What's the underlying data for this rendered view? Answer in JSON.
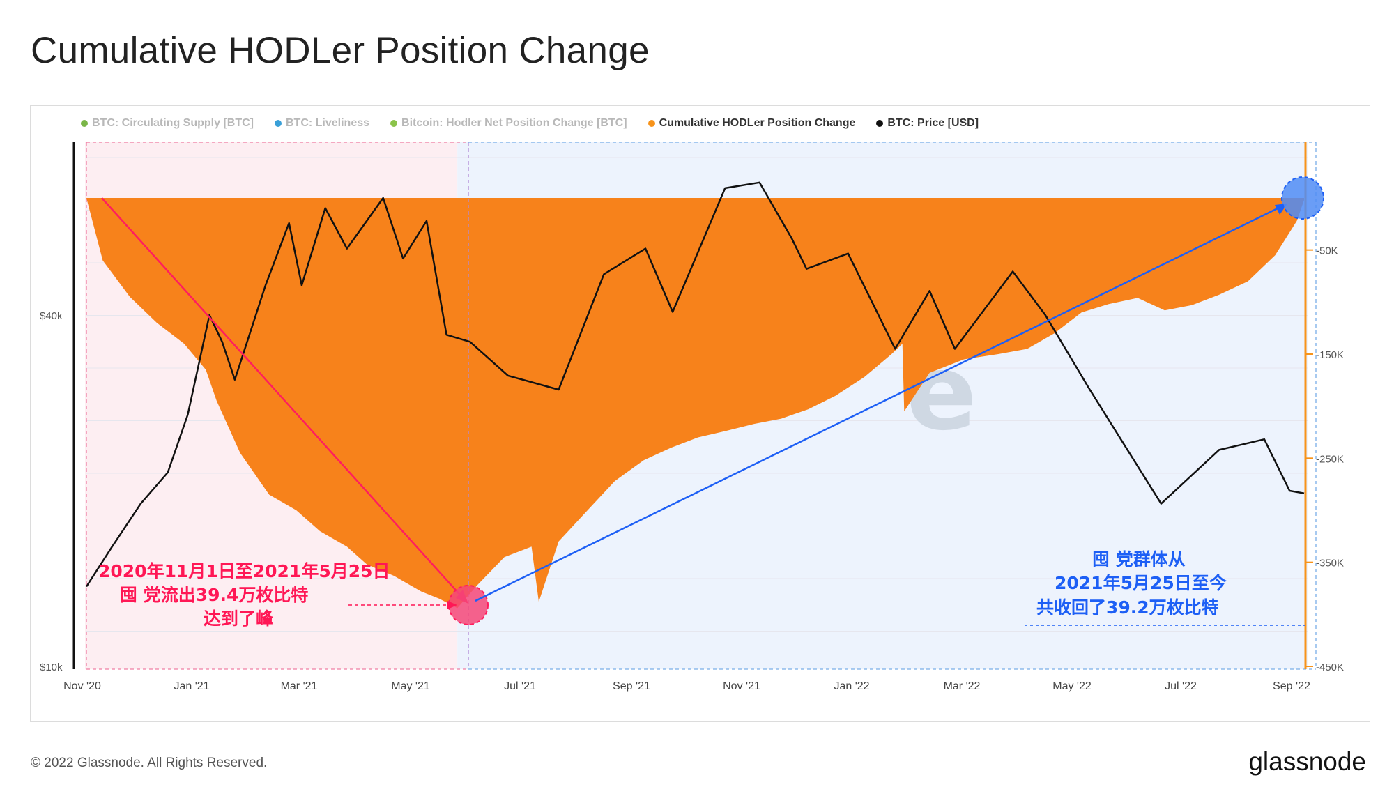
{
  "title": "Cumulative HODLer Position Change",
  "legend": [
    {
      "label": "BTC: Circulating Supply [BTC]",
      "color": "#7ab648",
      "active": false
    },
    {
      "label": "BTC: Liveliness",
      "color": "#3aa0d8",
      "active": false
    },
    {
      "label": "Bitcoin: Hodler Net Position Change [BTC]",
      "color": "#8bc34a",
      "active": false
    },
    {
      "label": "Cumulative HODLer Position Change",
      "color": "#f7931a",
      "active": true
    },
    {
      "label": "BTC: Price [USD]",
      "color": "#111111",
      "active": true
    }
  ],
  "footer": {
    "copyright": "© 2022 Glassnode. All Rights Reserved.",
    "logo": "glassnode"
  },
  "chart_data": {
    "type": "area",
    "title": "Cumulative HODLer Position Change",
    "x_tick_labels": [
      "Nov '20",
      "Jan '21",
      "Mar '21",
      "May '21",
      "Jul '21",
      "Sep '21",
      "Nov '21",
      "Jan '22",
      "Mar '22",
      "May '22",
      "Jul '22",
      "Sep '22"
    ],
    "left_axis": {
      "scale": "log",
      "tick_labels": [
        "$10k",
        "$40k"
      ],
      "tick_values": [
        10000,
        40000
      ],
      "range": [
        10000,
        70000
      ]
    },
    "right_axis": {
      "tick_labels": [
        "-50K",
        "-150K",
        "-250K",
        "-350K",
        "-450K"
      ],
      "tick_values": [
        -50000,
        -150000,
        -250000,
        -350000,
        -450000
      ],
      "range": [
        -450000,
        40000
      ]
    },
    "grid": true,
    "legend_position": "top",
    "series": [
      {
        "name": "Cumulative HODLer Position Change",
        "axis": "right",
        "color": "#f7821b",
        "points": [
          [
            "2020-11-01",
            0
          ],
          [
            "2020-11-10",
            -60000
          ],
          [
            "2020-11-25",
            -95000
          ],
          [
            "2020-12-10",
            -120000
          ],
          [
            "2020-12-25",
            -140000
          ],
          [
            "2021-01-06",
            -165000
          ],
          [
            "2021-01-12",
            -195000
          ],
          [
            "2021-01-25",
            -245000
          ],
          [
            "2021-02-10",
            -285000
          ],
          [
            "2021-02-25",
            -300000
          ],
          [
            "2021-03-10",
            -320000
          ],
          [
            "2021-03-25",
            -335000
          ],
          [
            "2021-04-05",
            -352000
          ],
          [
            "2021-04-20",
            -363000
          ],
          [
            "2021-05-05",
            -378000
          ],
          [
            "2021-05-15",
            -385000
          ],
          [
            "2021-05-25",
            -394000
          ],
          [
            "2021-06-05",
            -372000
          ],
          [
            "2021-06-20",
            -345000
          ],
          [
            "2021-07-05",
            -335000
          ],
          [
            "2021-07-09",
            -388000
          ],
          [
            "2021-07-20",
            -330000
          ],
          [
            "2021-08-05",
            -300000
          ],
          [
            "2021-08-20",
            -272000
          ],
          [
            "2021-09-05",
            -252000
          ],
          [
            "2021-09-20",
            -240000
          ],
          [
            "2021-10-05",
            -230000
          ],
          [
            "2021-10-20",
            -224000
          ],
          [
            "2021-11-05",
            -217000
          ],
          [
            "2021-11-20",
            -212000
          ],
          [
            "2021-12-05",
            -203000
          ],
          [
            "2021-12-20",
            -190000
          ],
          [
            "2022-01-05",
            -172000
          ],
          [
            "2022-01-20",
            -150000
          ],
          [
            "2022-01-26",
            -140000
          ],
          [
            "2022-01-27",
            -205000
          ],
          [
            "2022-02-10",
            -168000
          ],
          [
            "2022-03-01",
            -155000
          ],
          [
            "2022-03-20",
            -150000
          ],
          [
            "2022-04-05",
            -145000
          ],
          [
            "2022-04-20",
            -130000
          ],
          [
            "2022-05-05",
            -110000
          ],
          [
            "2022-05-20",
            -102000
          ],
          [
            "2022-06-05",
            -96000
          ],
          [
            "2022-06-20",
            -108000
          ],
          [
            "2022-07-05",
            -103000
          ],
          [
            "2022-07-20",
            -93000
          ],
          [
            "2022-08-05",
            -80000
          ],
          [
            "2022-08-20",
            -55000
          ],
          [
            "2022-09-01",
            -22000
          ],
          [
            "2022-09-05",
            -2000
          ]
        ]
      },
      {
        "name": "BTC: Price [USD]",
        "axis": "left",
        "color": "#111111",
        "points": [
          [
            "2020-11-01",
            13700
          ],
          [
            "2020-11-15",
            16000
          ],
          [
            "2020-12-01",
            19000
          ],
          [
            "2020-12-16",
            21500
          ],
          [
            "2020-12-27",
            27000
          ],
          [
            "2021-01-08",
            40000
          ],
          [
            "2021-01-15",
            36000
          ],
          [
            "2021-01-22",
            31000
          ],
          [
            "2021-02-08",
            45000
          ],
          [
            "2021-02-21",
            57500
          ],
          [
            "2021-02-28",
            45000
          ],
          [
            "2021-03-13",
            61000
          ],
          [
            "2021-03-25",
            52000
          ],
          [
            "2021-04-14",
            63500
          ],
          [
            "2021-04-25",
            50000
          ],
          [
            "2021-05-08",
            58000
          ],
          [
            "2021-05-19",
            37000
          ],
          [
            "2021-06-01",
            36000
          ],
          [
            "2021-06-22",
            31500
          ],
          [
            "2021-07-20",
            29800
          ],
          [
            "2021-08-14",
            47000
          ],
          [
            "2021-09-06",
            52000
          ],
          [
            "2021-09-21",
            40500
          ],
          [
            "2021-10-20",
            66000
          ],
          [
            "2021-11-08",
            67500
          ],
          [
            "2021-11-26",
            54000
          ],
          [
            "2021-12-04",
            48000
          ],
          [
            "2021-12-27",
            51000
          ],
          [
            "2022-01-22",
            35000
          ],
          [
            "2022-02-10",
            44000
          ],
          [
            "2022-02-24",
            35000
          ],
          [
            "2022-03-28",
            47500
          ],
          [
            "2022-04-15",
            40000
          ],
          [
            "2022-05-09",
            30000
          ],
          [
            "2022-06-18",
            19000
          ],
          [
            "2022-07-20",
            23500
          ],
          [
            "2022-08-14",
            24500
          ],
          [
            "2022-08-28",
            20000
          ],
          [
            "2022-09-05",
            19800
          ]
        ]
      }
    ],
    "regions": [
      {
        "start": "2020-11-01",
        "end": "2021-05-25",
        "color": "#fdeef2"
      },
      {
        "start": "2021-05-25",
        "end": "2022-09-05",
        "color": "#edf3fd"
      }
    ],
    "annotations": [
      {
        "text_lines": [
          "2020年11月1日至2021年5月25日",
          "囤    党流出39.4万枚比特",
          "达到了峰"
        ],
        "color": "#ff1755"
      },
      {
        "text_lines": [
          "囤    党群体从",
          "2021年5月25日至今",
          "共收回了39.2万枚比特"
        ],
        "color": "#1d5ff5"
      }
    ],
    "watermark": "e"
  }
}
